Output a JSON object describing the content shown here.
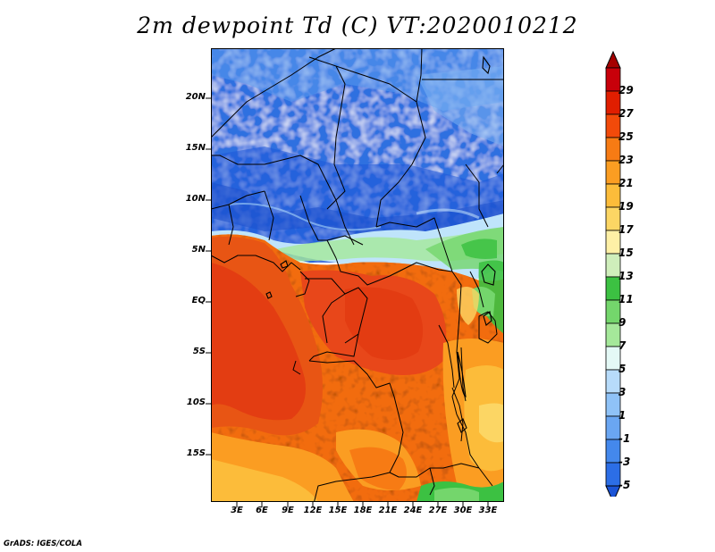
{
  "title": "2m dewpoint Td (C) VT:2020010212",
  "footer": "GrADS: IGES/COLA",
  "map": {
    "type": "filled-contour map",
    "variable": "2m dewpoint",
    "units": "C",
    "region": "Central and West-Central Africa",
    "lat_labels": [
      "20N",
      "15N",
      "10N",
      "5N",
      "EQ",
      "5S",
      "10S",
      "15S"
    ],
    "lon_labels": [
      "3E",
      "6E",
      "9E",
      "12E",
      "15E",
      "18E",
      "21E",
      "24E",
      "27E",
      "30E",
      "33E"
    ]
  },
  "colorbar": {
    "labels": [
      "29",
      "27",
      "25",
      "23",
      "21",
      "19",
      "17",
      "15",
      "13",
      "11",
      "9",
      "7",
      "5",
      "3",
      "1",
      "-1",
      "-3",
      "-5"
    ],
    "colors": [
      "#a50000",
      "#c8000a",
      "#e01e00",
      "#f24a0a",
      "#f77b14",
      "#fb9d22",
      "#fcbc3a",
      "#fcd664",
      "#fef0a6",
      "#cfeebb",
      "#3cc142",
      "#74d66c",
      "#a5e89a",
      "#e4f9f6",
      "#b7dbfa",
      "#8fc2f7",
      "#6aa6f2",
      "#4488ec",
      "#2c6ee6",
      "#1b54d6"
    ]
  }
}
